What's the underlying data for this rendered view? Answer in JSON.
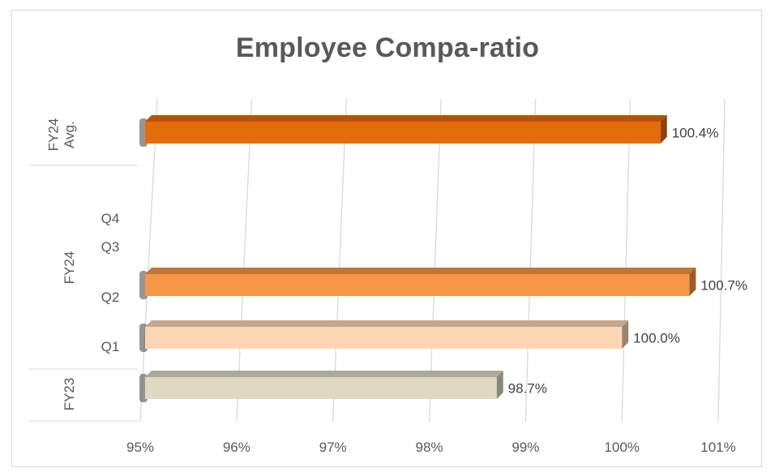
{
  "chart_data": {
    "type": "bar",
    "orientation": "horizontal",
    "title": "Employee Compa-ratio",
    "xlim": [
      95,
      101
    ],
    "x_ticks": [
      "95%",
      "96%",
      "97%",
      "98%",
      "99%",
      "100%",
      "101%"
    ],
    "groups": [
      {
        "label": "FY24 Avg.",
        "categories": [
          ""
        ]
      },
      {
        "label": "FY24",
        "categories": [
          "Q4",
          "Q3",
          "Q2",
          "Q1"
        ]
      },
      {
        "label": "FY23",
        "categories": [
          ""
        ]
      }
    ],
    "bars": [
      {
        "group": "FY24 Avg.",
        "category": "",
        "value": 100.4,
        "label": "100.4%",
        "color": "#e46c0a"
      },
      {
        "group": "FY24",
        "category": "Q4",
        "value": null,
        "label": ""
      },
      {
        "group": "FY24",
        "category": "Q3",
        "value": null,
        "label": ""
      },
      {
        "group": "FY24",
        "category": "Q2",
        "value": 100.7,
        "label": "100.7%",
        "color": "#f79646"
      },
      {
        "group": "FY24",
        "category": "Q1",
        "value": 100.0,
        "label": "100.0%",
        "color": "#fcd5b5"
      },
      {
        "group": "FY23",
        "category": "",
        "value": 98.7,
        "label": "98.7%",
        "color": "#ddd9c3"
      }
    ],
    "grid": true,
    "legend": "none"
  }
}
